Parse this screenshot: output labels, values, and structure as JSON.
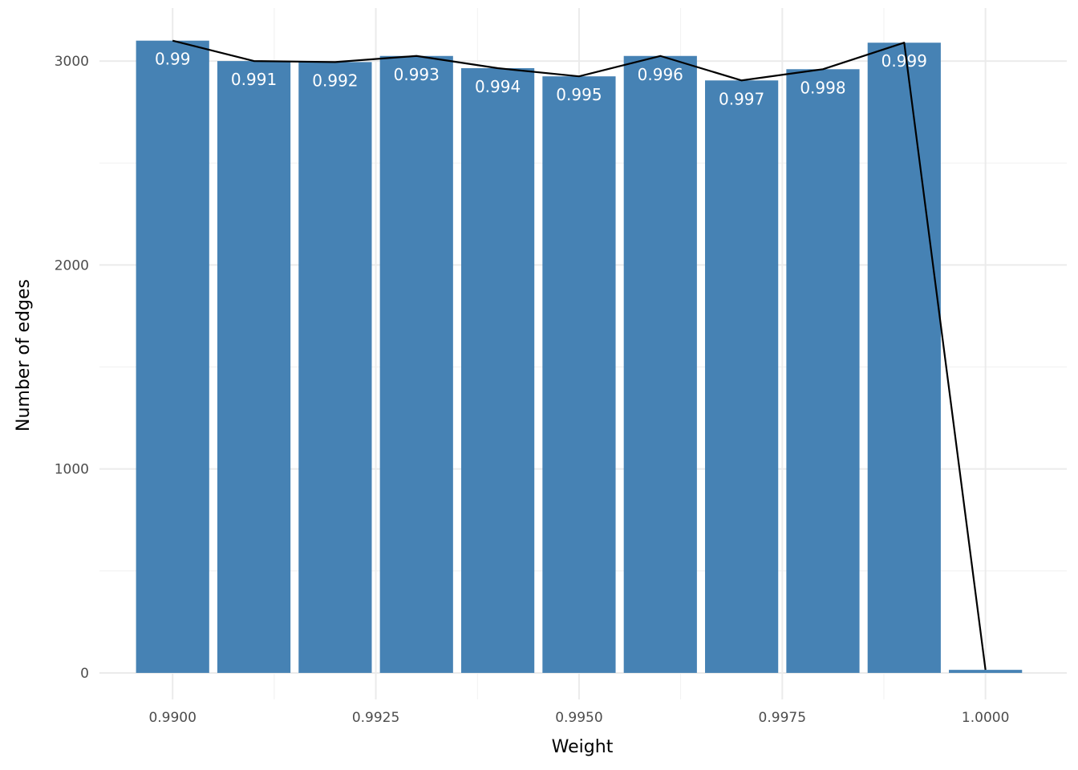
{
  "chart_data": {
    "type": "bar",
    "xlabel": "Weight",
    "ylabel": "Number of edges",
    "xlim": [
      0.9891,
      1.001
    ],
    "ylim": [
      -130,
      3260
    ],
    "x_ticks": [
      0.99,
      0.9925,
      0.995,
      0.9975,
      1.0
    ],
    "x_tick_labels": [
      "0.9900",
      "0.9925",
      "0.9950",
      "0.9975",
      "1.0000"
    ],
    "y_ticks": [
      0,
      1000,
      2000,
      3000
    ],
    "y_tick_labels": [
      "0",
      "1000",
      "2000",
      "3000"
    ],
    "grid": true,
    "bar_color": "#4682B4",
    "line_color": "#000000",
    "bar_width": 0.0009,
    "bars": [
      {
        "x": 0.99,
        "value": 3100,
        "label": "0.99"
      },
      {
        "x": 0.991,
        "value": 3000,
        "label": "0.991"
      },
      {
        "x": 0.992,
        "value": 2995,
        "label": "0.992"
      },
      {
        "x": 0.993,
        "value": 3025,
        "label": "0.993"
      },
      {
        "x": 0.994,
        "value": 2965,
        "label": "0.994"
      },
      {
        "x": 0.995,
        "value": 2925,
        "label": "0.995"
      },
      {
        "x": 0.996,
        "value": 3025,
        "label": "0.996"
      },
      {
        "x": 0.997,
        "value": 2905,
        "label": "0.997"
      },
      {
        "x": 0.998,
        "value": 2960,
        "label": "0.998"
      },
      {
        "x": 0.999,
        "value": 3090,
        "label": "0.999"
      },
      {
        "x": 1.0,
        "value": 15,
        "label": ""
      }
    ],
    "line": [
      {
        "x": 0.99,
        "y": 3100
      },
      {
        "x": 0.991,
        "y": 3000
      },
      {
        "x": 0.992,
        "y": 2995
      },
      {
        "x": 0.993,
        "y": 3025
      },
      {
        "x": 0.994,
        "y": 2965
      },
      {
        "x": 0.995,
        "y": 2925
      },
      {
        "x": 0.996,
        "y": 3025
      },
      {
        "x": 0.997,
        "y": 2905
      },
      {
        "x": 0.998,
        "y": 2960
      },
      {
        "x": 0.999,
        "y": 3090
      },
      {
        "x": 1.0,
        "y": 15
      }
    ]
  }
}
